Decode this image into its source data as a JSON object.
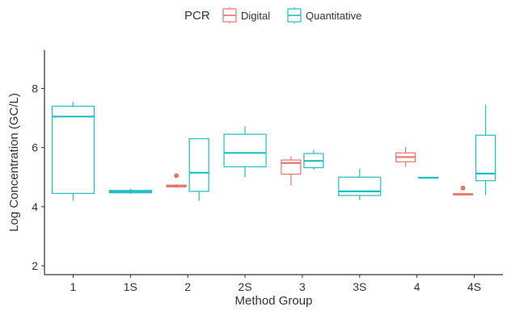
{
  "chart_data": {
    "type": "boxplot",
    "title": "",
    "xlabel": "Method Group",
    "ylabel": "Log Concentration (GC/L)",
    "ylim": [
      1.7,
      9.3
    ],
    "yticks": [
      2,
      4,
      6,
      8
    ],
    "grid": false,
    "legend": {
      "title": "PCR",
      "position": "top",
      "entries": [
        {
          "name": "Digital",
          "color": "#E8736B"
        },
        {
          "name": "Quantitative",
          "color": "#1FBFC4"
        }
      ]
    },
    "categories": [
      "1",
      "1S",
      "2",
      "2S",
      "3",
      "3S",
      "4",
      "4S"
    ],
    "boxes": [
      {
        "category": "1",
        "series": "Quantitative",
        "min": 4.2,
        "q1": 4.45,
        "median": 7.05,
        "q3": 7.4,
        "max": 7.55,
        "outliers": []
      },
      {
        "category": "1S",
        "series": "Quantitative",
        "min": 4.43,
        "q1": 4.47,
        "median": 4.51,
        "q3": 4.55,
        "max": 4.6,
        "outliers": []
      },
      {
        "category": "2",
        "series": "Digital",
        "min": 4.64,
        "q1": 4.67,
        "median": 4.7,
        "q3": 4.73,
        "max": 4.76,
        "outliers": [
          5.05
        ]
      },
      {
        "category": "2",
        "series": "Quantitative",
        "min": 4.2,
        "q1": 4.52,
        "median": 5.15,
        "q3": 6.3,
        "max": 6.3,
        "outliers": []
      },
      {
        "category": "2S",
        "series": "Quantitative",
        "min": 5.0,
        "q1": 5.35,
        "median": 5.82,
        "q3": 6.45,
        "max": 6.72,
        "outliers": []
      },
      {
        "category": "3",
        "series": "Digital",
        "min": 4.72,
        "q1": 5.1,
        "median": 5.48,
        "q3": 5.58,
        "max": 5.7,
        "outliers": []
      },
      {
        "category": "3",
        "series": "Quantitative",
        "min": 5.25,
        "q1": 5.32,
        "median": 5.55,
        "q3": 5.8,
        "max": 5.92,
        "outliers": []
      },
      {
        "category": "3S",
        "series": "Quantitative",
        "min": 4.22,
        "q1": 4.38,
        "median": 4.52,
        "q3": 5.0,
        "max": 5.28,
        "outliers": []
      },
      {
        "category": "4",
        "series": "Digital",
        "min": 5.35,
        "q1": 5.52,
        "median": 5.68,
        "q3": 5.82,
        "max": 6.02,
        "outliers": []
      },
      {
        "category": "4",
        "series": "Quantitative",
        "min": 4.97,
        "q1": 4.97,
        "median": 4.98,
        "q3": 4.99,
        "max": 4.99,
        "outliers": []
      },
      {
        "category": "4S",
        "series": "Digital",
        "min": 4.39,
        "q1": 4.4,
        "median": 4.42,
        "q3": 4.44,
        "max": 4.45,
        "outliers": [
          4.63
        ]
      },
      {
        "category": "4S",
        "series": "Quantitative",
        "min": 4.4,
        "q1": 4.88,
        "median": 5.12,
        "q3": 6.42,
        "max": 7.45,
        "outliers": []
      }
    ]
  }
}
